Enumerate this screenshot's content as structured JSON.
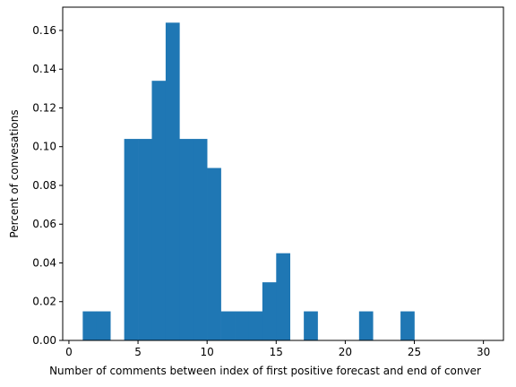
{
  "chart_data": {
    "type": "bar",
    "title": "",
    "xlabel": "Number of comments between index of first positive forecast and end of conver",
    "ylabel": "Percent of convesations",
    "xlim": [
      -0.45,
      31.45
    ],
    "ylim": [
      0,
      0.172
    ],
    "grid": false,
    "bar_color": "#1f77b4",
    "x_ticks": [
      0,
      5,
      10,
      15,
      20,
      25,
      30
    ],
    "x_tick_labels": [
      "0",
      "5",
      "10",
      "15",
      "20",
      "25",
      "30"
    ],
    "y_ticks": [
      0.0,
      0.02,
      0.04,
      0.06,
      0.08,
      0.1,
      0.12,
      0.14,
      0.16
    ],
    "y_tick_labels": [
      "0.00",
      "0.02",
      "0.04",
      "0.06",
      "0.08",
      "0.10",
      "0.12",
      "0.14",
      "0.16"
    ],
    "bins": [
      {
        "x0": 1,
        "x1": 2,
        "value": 0.015
      },
      {
        "x0": 2,
        "x1": 3,
        "value": 0.015
      },
      {
        "x0": 4,
        "x1": 5,
        "value": 0.104
      },
      {
        "x0": 5,
        "x1": 6,
        "value": 0.104
      },
      {
        "x0": 6,
        "x1": 7,
        "value": 0.134
      },
      {
        "x0": 7,
        "x1": 8,
        "value": 0.164
      },
      {
        "x0": 8,
        "x1": 9,
        "value": 0.104
      },
      {
        "x0": 9,
        "x1": 10,
        "value": 0.104
      },
      {
        "x0": 10,
        "x1": 11,
        "value": 0.089
      },
      {
        "x0": 11,
        "x1": 12,
        "value": 0.015
      },
      {
        "x0": 12,
        "x1": 13,
        "value": 0.015
      },
      {
        "x0": 13,
        "x1": 14,
        "value": 0.015
      },
      {
        "x0": 14,
        "x1": 15,
        "value": 0.03
      },
      {
        "x0": 15,
        "x1": 16,
        "value": 0.045
      },
      {
        "x0": 17,
        "x1": 18,
        "value": 0.015
      },
      {
        "x0": 21,
        "x1": 22,
        "value": 0.015
      },
      {
        "x0": 24,
        "x1": 25,
        "value": 0.015
      }
    ]
  }
}
